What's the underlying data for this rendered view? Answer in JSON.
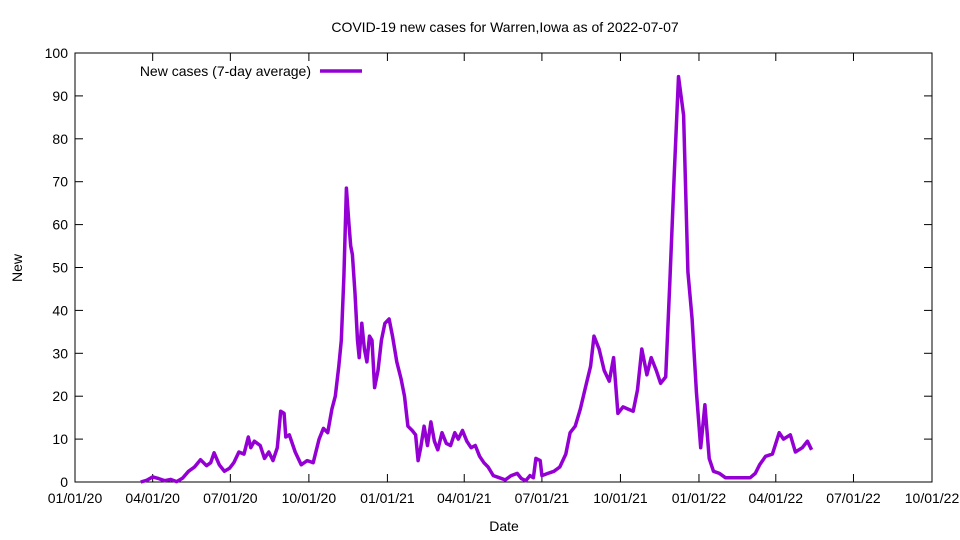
{
  "chart_data": {
    "type": "line",
    "title": "COVID-19 new cases for Warren,Iowa as of 2022-07-07",
    "xlabel": "Date",
    "ylabel": "New",
    "ylim": [
      0,
      100
    ],
    "yticks": [
      0,
      10,
      20,
      30,
      40,
      50,
      60,
      70,
      80,
      90,
      100
    ],
    "xlim": [
      "2020-01-01",
      "2022-10-01"
    ],
    "xticks": [
      {
        "date": "2020-01-01",
        "label": "01/01/20"
      },
      {
        "date": "2020-04-01",
        "label": "04/01/20"
      },
      {
        "date": "2020-07-01",
        "label": "07/01/20"
      },
      {
        "date": "2020-10-01",
        "label": "10/01/20"
      },
      {
        "date": "2021-01-01",
        "label": "01/01/21"
      },
      {
        "date": "2021-04-01",
        "label": "04/01/21"
      },
      {
        "date": "2021-07-01",
        "label": "07/01/21"
      },
      {
        "date": "2021-10-01",
        "label": "10/01/21"
      },
      {
        "date": "2022-01-01",
        "label": "01/01/22"
      },
      {
        "date": "2022-04-01",
        "label": "04/01/22"
      },
      {
        "date": "2022-07-01",
        "label": "07/01/22"
      },
      {
        "date": "2022-10-01",
        "label": "10/01/22"
      }
    ],
    "grid": false,
    "legend_position": "top-left",
    "series": [
      {
        "name": "New cases (7-day average)",
        "color": "#9400d3",
        "points": [
          [
            "2020-03-18",
            0
          ],
          [
            "2020-03-25",
            0.4
          ],
          [
            "2020-04-01",
            1.2
          ],
          [
            "2020-04-08",
            0.8
          ],
          [
            "2020-04-15",
            0.3
          ],
          [
            "2020-04-22",
            0.6
          ],
          [
            "2020-04-29",
            0.1
          ],
          [
            "2020-05-06",
            0.9
          ],
          [
            "2020-05-13",
            2.5
          ],
          [
            "2020-05-20",
            3.5
          ],
          [
            "2020-05-27",
            5.2
          ],
          [
            "2020-06-03",
            3.8
          ],
          [
            "2020-06-08",
            4.5
          ],
          [
            "2020-06-12",
            6.8
          ],
          [
            "2020-06-18",
            4.0
          ],
          [
            "2020-06-24",
            2.5
          ],
          [
            "2020-06-30",
            3.2
          ],
          [
            "2020-07-05",
            4.5
          ],
          [
            "2020-07-11",
            7.0
          ],
          [
            "2020-07-17",
            6.5
          ],
          [
            "2020-07-22",
            10.5
          ],
          [
            "2020-07-25",
            8.0
          ],
          [
            "2020-07-29",
            9.5
          ],
          [
            "2020-08-05",
            8.5
          ],
          [
            "2020-08-10",
            5.5
          ],
          [
            "2020-08-15",
            7.0
          ],
          [
            "2020-08-20",
            5.0
          ],
          [
            "2020-08-25",
            8.0
          ],
          [
            "2020-08-29",
            16.5
          ],
          [
            "2020-09-02",
            16.0
          ],
          [
            "2020-09-04",
            10.5
          ],
          [
            "2020-09-08",
            11.0
          ],
          [
            "2020-09-15",
            7.0
          ],
          [
            "2020-09-22",
            4.0
          ],
          [
            "2020-09-29",
            5.0
          ],
          [
            "2020-10-06",
            4.5
          ],
          [
            "2020-10-13",
            10.0
          ],
          [
            "2020-10-18",
            12.5
          ],
          [
            "2020-10-23",
            11.5
          ],
          [
            "2020-10-28",
            17.0
          ],
          [
            "2020-11-01",
            20.0
          ],
          [
            "2020-11-05",
            27.0
          ],
          [
            "2020-11-08",
            33.0
          ],
          [
            "2020-11-11",
            48.0
          ],
          [
            "2020-11-14",
            68.5
          ],
          [
            "2020-11-17",
            60.0
          ],
          [
            "2020-11-19",
            55.0
          ],
          [
            "2020-11-21",
            53.0
          ],
          [
            "2020-11-24",
            44.0
          ],
          [
            "2020-11-27",
            33.0
          ],
          [
            "2020-11-29",
            29.0
          ],
          [
            "2020-12-02",
            37.0
          ],
          [
            "2020-12-05",
            31.0
          ],
          [
            "2020-12-08",
            28.0
          ],
          [
            "2020-12-11",
            34.0
          ],
          [
            "2020-12-14",
            33.0
          ],
          [
            "2020-12-17",
            22.0
          ],
          [
            "2020-12-21",
            26.0
          ],
          [
            "2020-12-25",
            33.0
          ],
          [
            "2020-12-29",
            37.0
          ],
          [
            "2021-01-03",
            38.0
          ],
          [
            "2021-01-07",
            34.0
          ],
          [
            "2021-01-12",
            28.0
          ],
          [
            "2021-01-17",
            24.0
          ],
          [
            "2021-01-21",
            20.0
          ],
          [
            "2021-01-25",
            13.0
          ],
          [
            "2021-01-30",
            12.0
          ],
          [
            "2021-02-03",
            11.0
          ],
          [
            "2021-02-06",
            5.0
          ],
          [
            "2021-02-09",
            8.0
          ],
          [
            "2021-02-13",
            13.0
          ],
          [
            "2021-02-17",
            8.5
          ],
          [
            "2021-02-21",
            14.0
          ],
          [
            "2021-02-25",
            9.5
          ],
          [
            "2021-03-01",
            7.5
          ],
          [
            "2021-03-06",
            11.5
          ],
          [
            "2021-03-11",
            9.0
          ],
          [
            "2021-03-16",
            8.5
          ],
          [
            "2021-03-21",
            11.5
          ],
          [
            "2021-03-25",
            10.0
          ],
          [
            "2021-03-30",
            12.0
          ],
          [
            "2021-04-04",
            9.5
          ],
          [
            "2021-04-09",
            8.0
          ],
          [
            "2021-04-14",
            8.5
          ],
          [
            "2021-04-19",
            6.0
          ],
          [
            "2021-04-24",
            4.5
          ],
          [
            "2021-04-29",
            3.5
          ],
          [
            "2021-05-05",
            1.5
          ],
          [
            "2021-05-12",
            1.0
          ],
          [
            "2021-05-19",
            0.5
          ],
          [
            "2021-05-26",
            1.5
          ],
          [
            "2021-06-02",
            2.0
          ],
          [
            "2021-06-07",
            0.8
          ],
          [
            "2021-06-12",
            0.3
          ],
          [
            "2021-06-17",
            1.5
          ],
          [
            "2021-06-21",
            1.0
          ],
          [
            "2021-06-24",
            5.5
          ],
          [
            "2021-06-29",
            5.0
          ],
          [
            "2021-07-01",
            1.5
          ],
          [
            "2021-07-08",
            2.0
          ],
          [
            "2021-07-15",
            2.5
          ],
          [
            "2021-07-22",
            3.5
          ],
          [
            "2021-07-29",
            6.5
          ],
          [
            "2021-08-03",
            11.5
          ],
          [
            "2021-08-09",
            13.0
          ],
          [
            "2021-08-15",
            17.0
          ],
          [
            "2021-08-21",
            22.0
          ],
          [
            "2021-08-27",
            27.0
          ],
          [
            "2021-08-31",
            34.0
          ],
          [
            "2021-09-06",
            31.0
          ],
          [
            "2021-09-12",
            26.0
          ],
          [
            "2021-09-18",
            23.5
          ],
          [
            "2021-09-23",
            29.0
          ],
          [
            "2021-09-28",
            16.0
          ],
          [
            "2021-10-04",
            17.5
          ],
          [
            "2021-10-10",
            17.0
          ],
          [
            "2021-10-16",
            16.5
          ],
          [
            "2021-10-21",
            21.5
          ],
          [
            "2021-10-26",
            31.0
          ],
          [
            "2021-11-01",
            25.0
          ],
          [
            "2021-11-06",
            29.0
          ],
          [
            "2021-11-12",
            26.0
          ],
          [
            "2021-11-17",
            23.0
          ],
          [
            "2021-11-23",
            24.5
          ],
          [
            "2021-11-28",
            47.0
          ],
          [
            "2021-12-03",
            71.5
          ],
          [
            "2021-12-08",
            94.5
          ],
          [
            "2021-12-14",
            85.5
          ],
          [
            "2021-12-19",
            49.0
          ],
          [
            "2021-12-24",
            38.0
          ],
          [
            "2021-12-29",
            21.0
          ],
          [
            "2022-01-03",
            8.0
          ],
          [
            "2022-01-08",
            18.0
          ],
          [
            "2022-01-13",
            5.5
          ],
          [
            "2022-01-18",
            2.5
          ],
          [
            "2022-01-25",
            2.0
          ],
          [
            "2022-02-01",
            1.0
          ],
          [
            "2022-02-10",
            1.0
          ],
          [
            "2022-02-20",
            1.0
          ],
          [
            "2022-03-02",
            1.0
          ],
          [
            "2022-03-08",
            2.0
          ],
          [
            "2022-03-13",
            4.0
          ],
          [
            "2022-03-20",
            6.0
          ],
          [
            "2022-03-28",
            6.5
          ],
          [
            "2022-04-05",
            11.5
          ],
          [
            "2022-04-10",
            10.0
          ],
          [
            "2022-04-18",
            11.0
          ],
          [
            "2022-04-24",
            7.0
          ],
          [
            "2022-05-02",
            8.0
          ],
          [
            "2022-05-08",
            9.5
          ],
          [
            "2022-05-13",
            7.5
          ]
        ]
      }
    ]
  }
}
